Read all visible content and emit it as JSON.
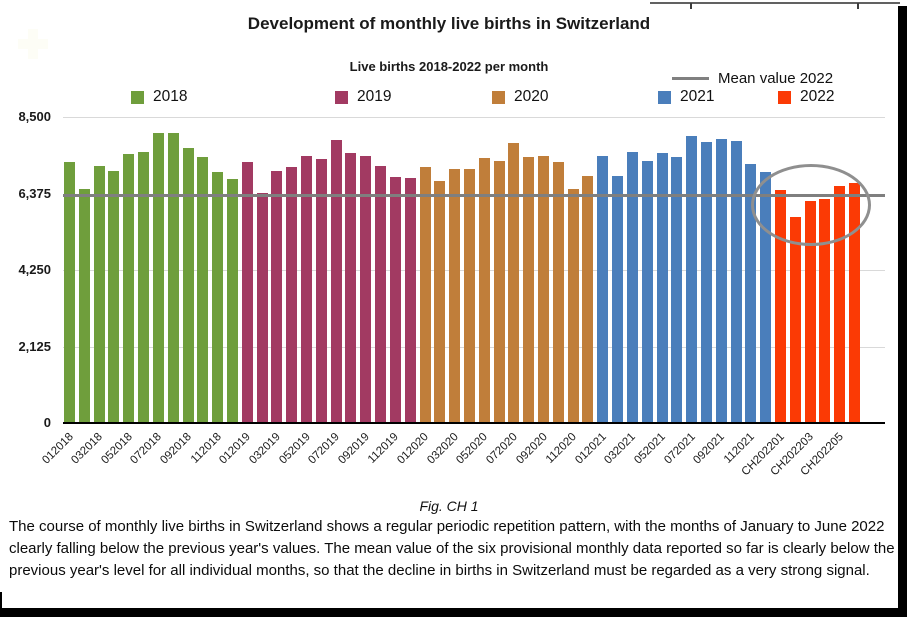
{
  "title": "Development of monthly live births in Switzerland",
  "subtitle": "Live births 2018-2022 per month",
  "legend": {
    "mean_label": "Mean value 2022",
    "years": [
      {
        "label": "2018",
        "color": "#6F9E3C"
      },
      {
        "label": "2019",
        "color": "#A23A62"
      },
      {
        "label": "2020",
        "color": "#C07E3A"
      },
      {
        "label": "2021",
        "color": "#4A7EBB"
      },
      {
        "label": "2022",
        "color": "#FB3A05"
      }
    ]
  },
  "chart_data": {
    "type": "bar",
    "title": "Development of monthly live births in Switzerland",
    "subtitle": "Live births 2018-2022 per month",
    "ylabel": "",
    "xlabel": "",
    "ylim": [
      0,
      8500
    ],
    "grid": true,
    "y_ticks": [
      "8,500",
      "6,375",
      "4,250",
      "2,125",
      "0"
    ],
    "x_tick_labels": [
      "012018",
      "032018",
      "052018",
      "072018",
      "092018",
      "112018",
      "012019",
      "032019",
      "052019",
      "072019",
      "092019",
      "112019",
      "012020",
      "032020",
      "052020",
      "072020",
      "092020",
      "112020",
      "012021",
      "032021",
      "052021",
      "072021",
      "092021",
      "112021",
      "CH202201",
      "CH202203",
      "CH202205"
    ],
    "series": [
      {
        "name": "2018",
        "color": "#6F9E3C",
        "values": [
          7240,
          6490,
          7150,
          7010,
          7470,
          7515,
          8050,
          8060,
          7650,
          7380,
          6960,
          6780
        ]
      },
      {
        "name": "2019",
        "color": "#A23A62",
        "values": [
          7240,
          6380,
          7010,
          7100,
          7425,
          7330,
          7865,
          7490,
          7425,
          7150,
          6825,
          6800
        ]
      },
      {
        "name": "2020",
        "color": "#C07E3A",
        "values": [
          7100,
          6735,
          7055,
          7060,
          7350,
          7290,
          7790,
          7380,
          7425,
          7240,
          6505,
          6870
        ]
      },
      {
        "name": "2021",
        "color": "#4A7EBB",
        "values": [
          7425,
          6870,
          7515,
          7285,
          7490,
          7400,
          7975,
          7810,
          7885,
          7820,
          7195,
          6965
        ]
      },
      {
        "name": "2022",
        "color": "#FB3A05",
        "values": [
          6485,
          5720,
          6180,
          6230,
          6570,
          6660
        ]
      }
    ],
    "mean_value_2022": 6308,
    "mean_line_label": "Mean value 2022",
    "annotation": "gray ellipse circled around the six 2022 bars",
    "legend_position": "top"
  },
  "caption": "Fig. CH 1",
  "body_text": "The course of monthly live births in Switzerland shows a regular periodic repetition pattern, with the months of January to June 2022 clearly falling below the previous year's values. The mean value of the six provisional monthly data reported so far is clearly below the previous year's level for all individual months, so that the decline in births in Switzerland must be regarded as a very strong signal.",
  "colors": {
    "flag_red": "#F5401F",
    "mean_line": "#7F7F7F",
    "gridline": "#D9D9D9",
    "ellipse": "#8F8F8F",
    "axis": "#000000"
  }
}
